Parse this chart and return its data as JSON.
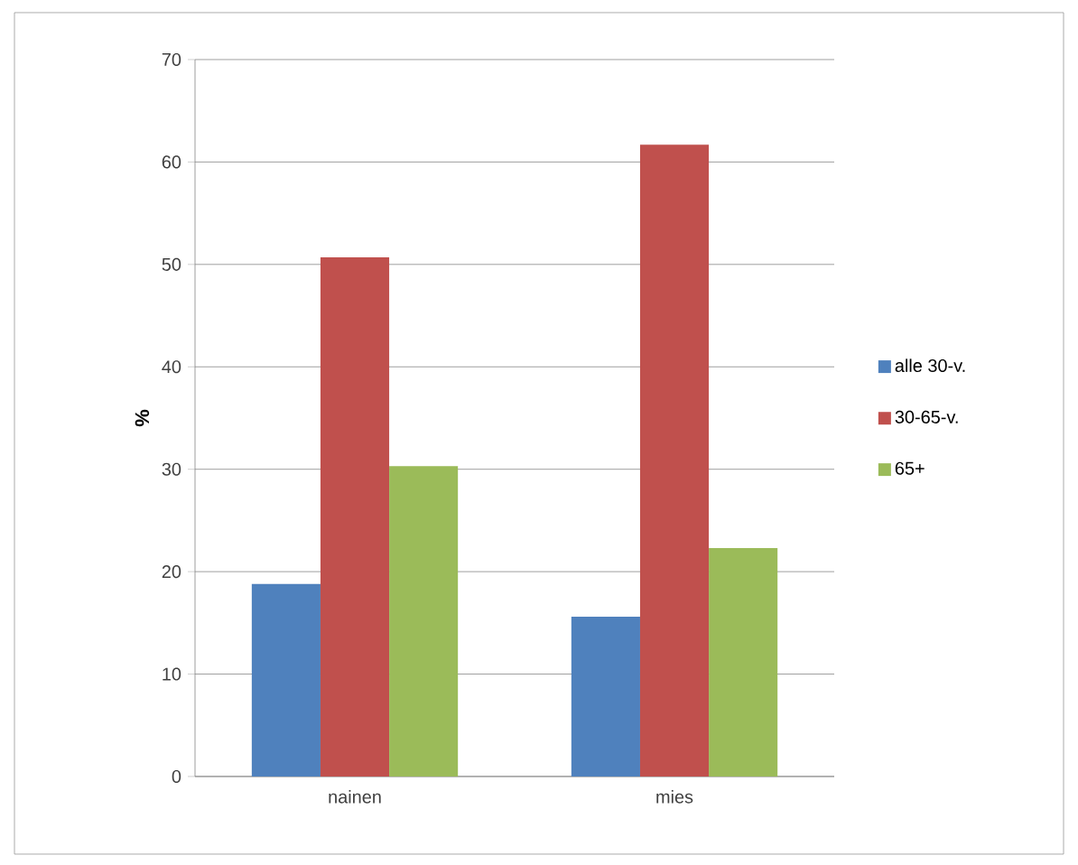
{
  "chart_data": {
    "type": "bar",
    "ylabel": "%",
    "categories": [
      "nainen",
      "mies"
    ],
    "series": [
      {
        "name": "alle 30-v.",
        "color": "#4f81bd",
        "values": [
          18.8,
          15.6
        ]
      },
      {
        "name": "30-65-v.",
        "color": "#c0504d",
        "values": [
          50.7,
          61.7
        ]
      },
      {
        "name": "65+",
        "color": "#9bbb59",
        "values": [
          30.3,
          22.3
        ]
      }
    ],
    "ylim": [
      0,
      70
    ],
    "yticks": [
      0,
      10,
      20,
      30,
      40,
      50,
      60,
      70
    ],
    "grid": "y",
    "legend": "right"
  }
}
